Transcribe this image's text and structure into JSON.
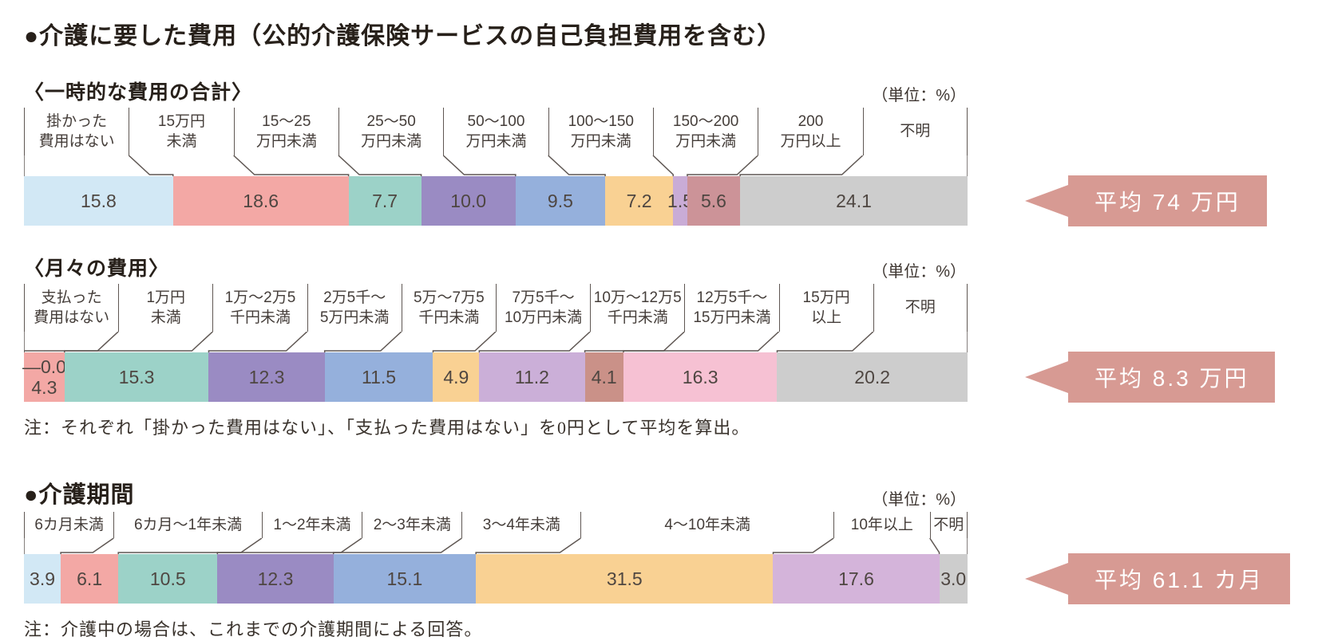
{
  "page": {
    "main_title": "●介護に要した費用（公的介護保険サービスの自己負担費用を含む）",
    "note_costs": "注：それぞれ「掛かった費用はない」、「支払った費用はない」を0円として平均を算出。",
    "note_period": "注：介護中の場合は、これまでの介護期間による回答。"
  },
  "colors": {
    "banner": "#d79a93",
    "banner_text": "#ffffff",
    "leader_line": "#5f5753",
    "bar_value_text": "#4e4641"
  },
  "chart_data": [
    {
      "type": "bar",
      "subtype": "stacked-100pct-horizontal",
      "title": "〈一時的な費用の合計〉",
      "unit": "（単位：%）",
      "average_label": "平均 74 万円",
      "categories": [
        "掛かった費用はない",
        "15万円未満",
        "15～25万円未満",
        "25～50万円未満",
        "50～100万円未満",
        "100～150万円未満",
        "150～200万円未満",
        "200万円以上",
        "不明"
      ],
      "label_lines": [
        [
          "掛かった",
          "費用はない"
        ],
        [
          "15万円",
          "未満"
        ],
        [
          "15～25",
          "万円未満"
        ],
        [
          "25～50",
          "万円未満"
        ],
        [
          "50～100",
          "万円未満"
        ],
        [
          "100～150",
          "万円未満"
        ],
        [
          "150～200",
          "万円未満"
        ],
        [
          "200",
          "万円以上"
        ],
        [
          "不明"
        ]
      ],
      "values": [
        15.8,
        18.6,
        7.7,
        10.0,
        9.5,
        7.2,
        1.5,
        5.6,
        24.1
      ],
      "colors": [
        "#d2e8f5",
        "#f3a8a5",
        "#9cd2c8",
        "#9a8bc3",
        "#95b0dc",
        "#f9d193",
        "#c9acd6",
        "#cc9398",
        "#cdcdcd"
      ],
      "layout": {
        "leader_height": 26,
        "label_style": "two-line"
      }
    },
    {
      "type": "bar",
      "subtype": "stacked-100pct-horizontal",
      "title": "〈月々の費用〉",
      "unit": "（単位：%）",
      "average_label": "平均 8.3 万円",
      "categories": [
        "支払った費用はない",
        "1万円未満",
        "1万～2万5千円未満",
        "2万5千～5万円未満",
        "5万～7万5千円未満",
        "7万5千～10万円未満",
        "10万～12万5千円未満",
        "12万5千～15万円未満",
        "15万円以上",
        "不明"
      ],
      "label_lines": [
        [
          "支払った",
          "費用はない"
        ],
        [
          "1万円",
          "未満"
        ],
        [
          "1万～2万5",
          "千円未満"
        ],
        [
          "2万5千～",
          "5万円未満"
        ],
        [
          "5万～7万5",
          "千円未満"
        ],
        [
          "7万5千～",
          "10万円未満"
        ],
        [
          "10万～12万5",
          "千円未満"
        ],
        [
          "12万5千～",
          "15万円未満"
        ],
        [
          "15万円",
          "以上"
        ],
        [
          "不明"
        ]
      ],
      "values": [
        0.0,
        4.3,
        15.3,
        12.3,
        11.5,
        4.9,
        11.2,
        4.1,
        16.3,
        20.2
      ],
      "colors": [
        "#ffffff",
        "#f3a8a5",
        "#9cd2c8",
        "#9a8bc3",
        "#95b0dc",
        "#f9d193",
        "#cbafd8",
        "#ca9188",
        "#f6c1d3",
        "#cdcdcd"
      ],
      "zero_note": "—0.0",
      "zero_note_seg": 1,
      "layout": {
        "leader_height": 26,
        "label_style": "two-line"
      }
    },
    {
      "type": "bar",
      "subtype": "stacked-100pct-horizontal",
      "title": "●介護期間",
      "unit": "（単位：%）",
      "average_label": "平均 61.1 カ月",
      "categories": [
        "6カ月未満",
        "6カ月～1年未満",
        "1～2年未満",
        "2～3年未満",
        "3～4年未満",
        "4～10年未満",
        "10年以上",
        "不明"
      ],
      "label_lines": [
        [
          "6カ月未満"
        ],
        [
          "6カ月～1年未満"
        ],
        [
          "1～2年未満"
        ],
        [
          "2～3年未満"
        ],
        [
          "3～4年未満"
        ],
        [
          "4～10年未満"
        ],
        [
          "10年以上"
        ],
        [
          "不明"
        ]
      ],
      "label_widths": [
        9.5,
        15.7,
        10.6,
        10.6,
        12.6,
        26.8,
        10.2,
        4.0
      ],
      "values": [
        3.9,
        6.1,
        10.5,
        12.3,
        15.1,
        31.5,
        17.6,
        3.0
      ],
      "colors": [
        "#d2e8f5",
        "#f3a8a5",
        "#9cd2c8",
        "#9a8bc3",
        "#95b0dc",
        "#f9d193",
        "#d4b4da",
        "#cdcdcd"
      ],
      "layout": {
        "leader_height": 20,
        "label_style": "one-line"
      }
    }
  ]
}
